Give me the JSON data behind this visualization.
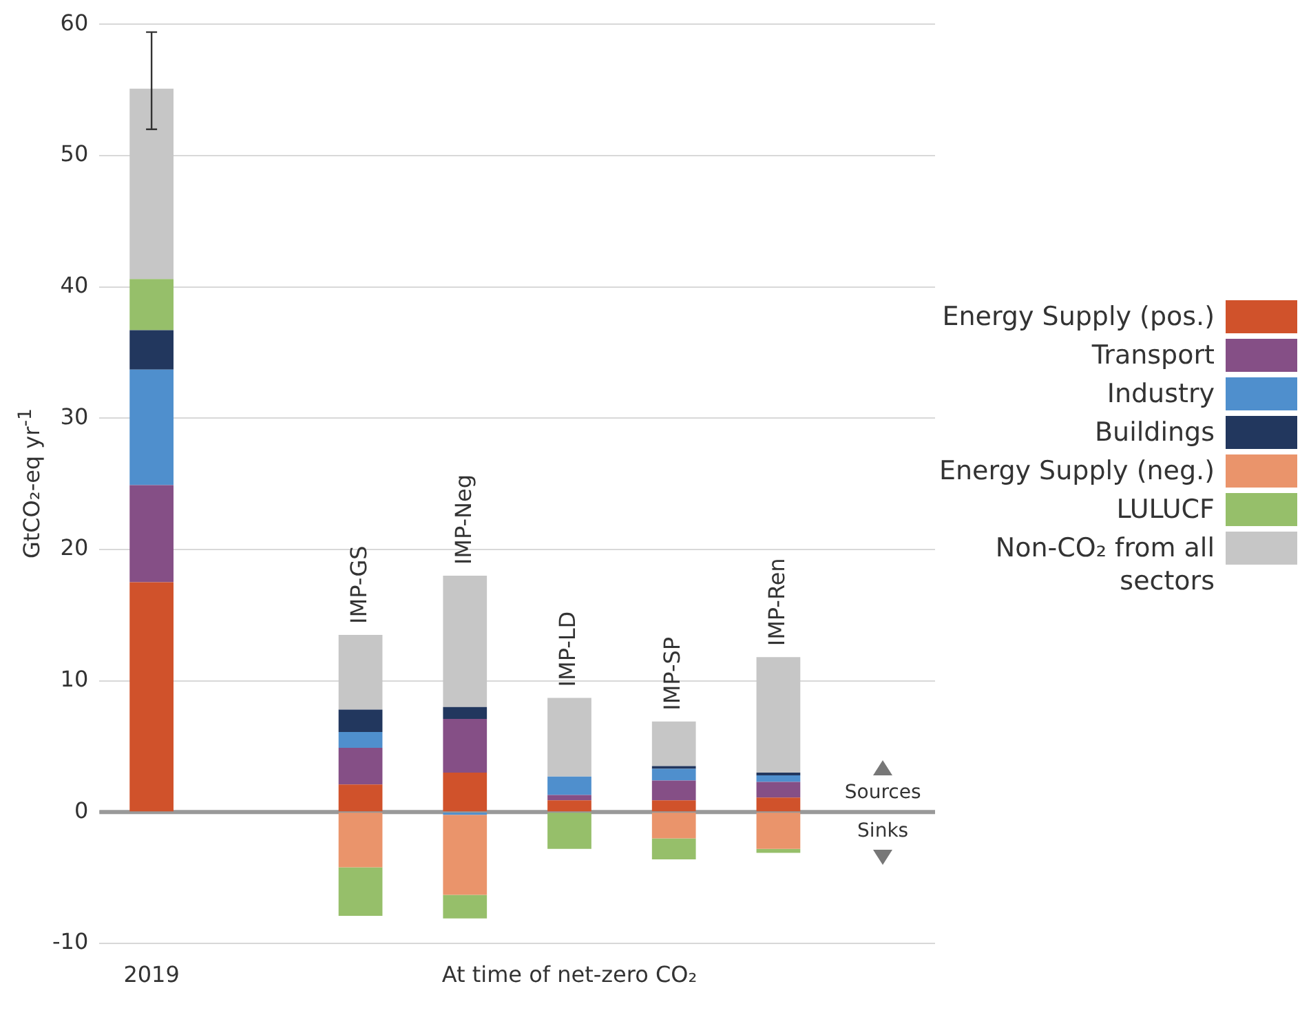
{
  "chart_data": {
    "type": "bar",
    "stacked": true,
    "ylabel": "GtCO₂-eq yr$^{-1}$",
    "categories": [
      "2019",
      null,
      "IMP-GS",
      "IMP-Neg",
      "IMP-LD",
      "IMP-SP",
      "IMP-Ren",
      null
    ],
    "series": [
      {
        "name": "Energy Supply (pos.)",
        "color": "#d0522b",
        "values": [
          17.5,
          null,
          2.1,
          3.0,
          0.9,
          0.9,
          1.1,
          null
        ]
      },
      {
        "name": "Transport",
        "color": "#854f86",
        "values": [
          7.4,
          null,
          2.8,
          4.1,
          0.4,
          1.5,
          1.2,
          null
        ]
      },
      {
        "name": "Industry",
        "color": "#4f8fcd",
        "values": [
          8.8,
          null,
          1.2,
          -0.2,
          1.4,
          0.9,
          0.5,
          null
        ]
      },
      {
        "name": "Buildings",
        "color": "#22375e",
        "values": [
          3.0,
          null,
          1.7,
          0.9,
          null,
          0.2,
          0.2,
          null
        ]
      },
      {
        "name": "Energy Supply (neg.)",
        "color": "#ea946b",
        "values": [
          null,
          null,
          -4.2,
          -6.1,
          null,
          -2.0,
          -2.8,
          null
        ]
      },
      {
        "name": "LULUCF",
        "color": "#96bf6a",
        "values": [
          3.9,
          null,
          -3.7,
          -1.8,
          -2.8,
          -1.6,
          -0.3,
          null
        ]
      },
      {
        "name": "Non-CO₂ from all sectors",
        "color": "#c6c6c6",
        "values": [
          14.5,
          null,
          5.7,
          10.0,
          6.0,
          3.4,
          8.8,
          null
        ],
        "errors": [
          [
            52,
            59.4
          ],
          null,
          null,
          null,
          null,
          null,
          null,
          null
        ]
      }
    ],
    "ylim": [
      -10,
      60
    ],
    "yticks": [
      -10,
      0,
      10,
      20,
      30,
      40,
      50,
      60
    ],
    "grid": "y",
    "legend": "right",
    "annotations": [
      "At time of net-zero CO₂",
      "Sources",
      "Sinks"
    ]
  }
}
